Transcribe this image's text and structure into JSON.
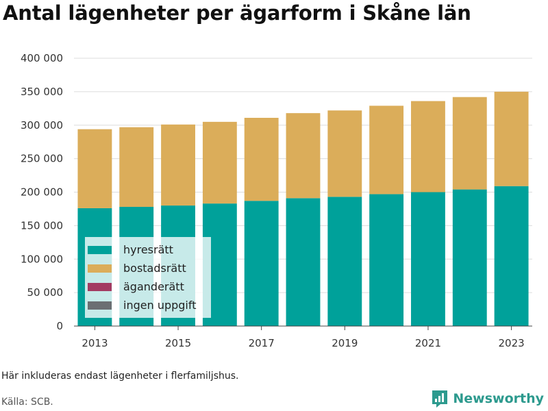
{
  "title": "Antal lägenheter per ägarform i Skåne län",
  "note": "Här inkluderas endast lägenheter i flerfamiljshus.",
  "source": "Källa: SCB.",
  "brand": "Newsworthy",
  "colors": {
    "hyresratt": "#00a19a",
    "bostadsratt": "#dbad5a",
    "aganderatt": "#a33b62",
    "ingen_uppgift": "#6b6f73",
    "legend_bg": "rgba(255,255,255,0.78)",
    "brand": "#2d9a8e"
  },
  "chart_data": {
    "type": "bar",
    "stacked": true,
    "categories": [
      "2013",
      "2014",
      "2015",
      "2016",
      "2017",
      "2018",
      "2019",
      "2020",
      "2021",
      "2022",
      "2023"
    ],
    "x_tick_labels": [
      "2013",
      "2015",
      "2017",
      "2019",
      "2021",
      "2023"
    ],
    "y_tick_labels": [
      "0",
      "50 000",
      "100 000",
      "150 000",
      "200 000",
      "250 000",
      "300 000",
      "350 000",
      "400 000"
    ],
    "ylim": [
      0,
      400000
    ],
    "grid": true,
    "legend": "bottom-left",
    "series": [
      {
        "name": "hyresrätt",
        "values": [
          176000,
          178000,
          180000,
          183000,
          187000,
          191000,
          193000,
          197000,
          200000,
          204000,
          209000
        ]
      },
      {
        "name": "bostadsrätt",
        "values": [
          118000,
          119000,
          121000,
          122000,
          124000,
          127000,
          129000,
          132000,
          136000,
          138000,
          141000
        ]
      },
      {
        "name": "äganderätt",
        "values": [
          0,
          0,
          0,
          0,
          0,
          0,
          0,
          0,
          0,
          0,
          0
        ]
      },
      {
        "name": "ingen uppgift",
        "values": [
          0,
          0,
          0,
          0,
          0,
          0,
          0,
          0,
          0,
          0,
          0
        ]
      }
    ]
  }
}
